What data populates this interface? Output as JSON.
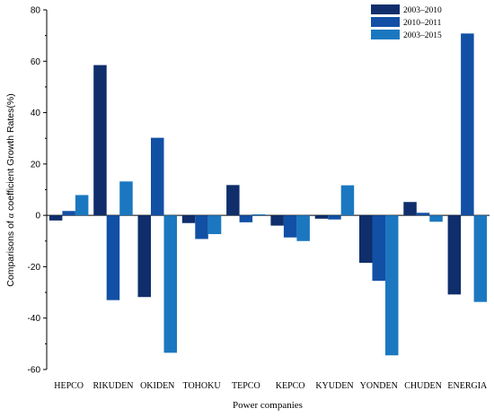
{
  "chart_data": {
    "type": "bar",
    "xlabel": "Power companies",
    "ylabel_prefix": "Comparisons of ",
    "ylabel_symbol": "α",
    "ylabel_suffix": " coefficient Growth Rates(%)",
    "ylim": [
      -60,
      80
    ],
    "yticks": [
      -60,
      -40,
      -20,
      0,
      20,
      40,
      60,
      80
    ],
    "legend_position": "top-right",
    "grid": false,
    "categories": [
      "HEPCO",
      "RIKUDEN",
      "OKIDEN",
      "TOHOKU",
      "TEPCO",
      "KEPCO",
      "KYUDEN",
      "YONDEN",
      "CHUDEN",
      "ENERGIA"
    ],
    "series": [
      {
        "name": "2003–2010",
        "color": "#0f2e6b",
        "values": [
          -2,
          58.5,
          -31.8,
          -3,
          11.8,
          -4,
          -1.3,
          -18.5,
          5.2,
          -30.8
        ]
      },
      {
        "name": "2010–2011",
        "color": "#1250a5",
        "values": [
          1.7,
          -33,
          30.2,
          -9.2,
          -2.7,
          -8.6,
          -1.6,
          -25.5,
          1,
          70.8
        ]
      },
      {
        "name": "2003–2015",
        "color": "#1b78c0",
        "values": [
          7.9,
          13.2,
          -53.5,
          -7.3,
          0.4,
          -10,
          11.7,
          -54.5,
          -2.5,
          -33.7
        ]
      }
    ]
  }
}
